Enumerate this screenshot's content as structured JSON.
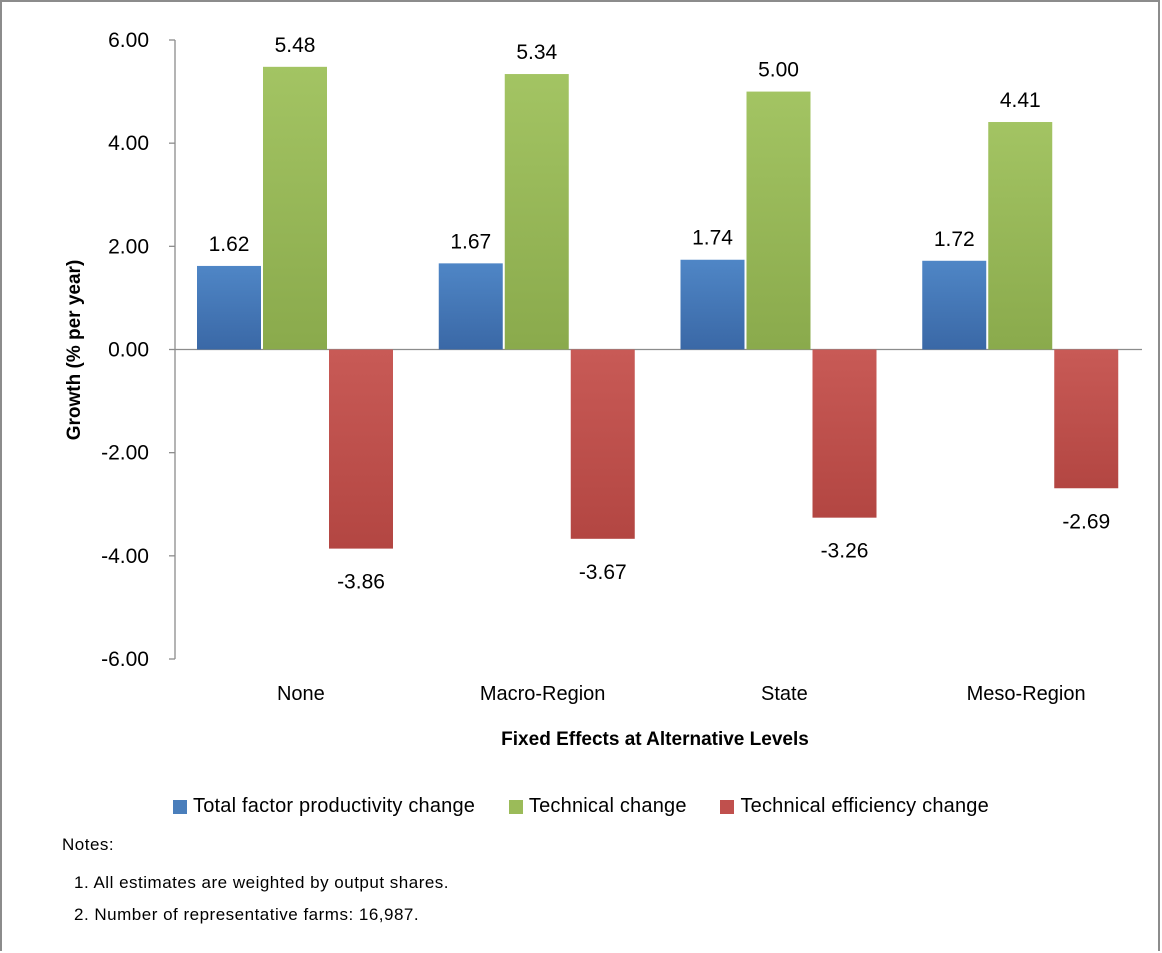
{
  "chart_data": {
    "type": "bar",
    "categories": [
      "None",
      "Macro-Region",
      "State",
      "Meso-Region"
    ],
    "series": [
      {
        "name": "Total factor productivity change",
        "values": [
          1.62,
          1.67,
          1.74,
          1.72
        ],
        "labels": [
          "1.62",
          "1.67",
          "1.74",
          "1.72"
        ],
        "color": "#4a7ebb"
      },
      {
        "name": "Technical change",
        "values": [
          5.48,
          5.34,
          5.0,
          4.41
        ],
        "labels": [
          "5.48",
          "5.34",
          "5.00",
          "4.41"
        ],
        "color": "#9bbb59"
      },
      {
        "name": "Technical efficiency change",
        "values": [
          -3.86,
          -3.67,
          -3.26,
          -2.69
        ],
        "labels": [
          "-3.86",
          "-3.67",
          "-3.26",
          "-2.69"
        ],
        "color": "#c0504d"
      }
    ],
    "xlabel": "Fixed Effects at Alternative Levels",
    "ylabel": "Growth (% per year)",
    "ylim": [
      -6,
      6
    ],
    "yticks": [
      "-6.00",
      "-4.00",
      "-2.00",
      "0.00",
      "2.00",
      "4.00",
      "6.00"
    ],
    "yticks_values": [
      -6,
      -4,
      -2,
      0,
      2,
      4,
      6
    ],
    "grid": false,
    "legend_position": "bottom"
  },
  "notes": {
    "title": "Notes:",
    "items": [
      "1. All estimates are weighted by output shares.",
      "2. Number of representative farms: 16,987."
    ]
  }
}
